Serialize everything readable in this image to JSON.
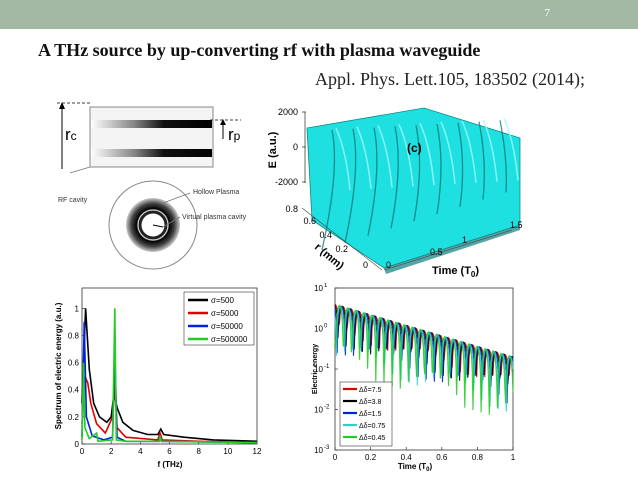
{
  "slide": {
    "page_number": "7",
    "title": "A THz source by up-converting rf with plasma waveguide",
    "reference": "Appl. Phys. Lett.105, 183502 (2014);"
  },
  "diagram": {
    "rc_label": "r",
    "rc_sub": "c",
    "rp_label": "r",
    "rp_sub": "p",
    "rf_cavity": "RF cavity",
    "hollow_plasma": "Hollow Plasma",
    "virtual_cavity": "Virtual plasma cavity"
  },
  "chart_data": [
    {
      "type": "surface",
      "panel_label": "(c)",
      "zlabel": "E (a.u.)",
      "z_ticks": [
        "2000",
        "0",
        "-2000"
      ],
      "r_label": "r (mm)",
      "r_ticks": [
        "0.8",
        "0.6",
        "0.4",
        "0.2",
        "0"
      ],
      "t_label": "Time (T",
      "t_label_sub": "0",
      "t_ticks": [
        "0",
        "0.5",
        "1",
        "1.5"
      ],
      "surface_color": "#1fe0e0"
    },
    {
      "type": "line",
      "xlabel": "f (THz)",
      "ylabel": "Spectrum of electric energy (a.u.)",
      "x_ticks": [
        "0",
        "2",
        "4",
        "6",
        "8",
        "10",
        "12"
      ],
      "y_ticks": [
        "0",
        "0.2",
        "0.4",
        "0.6",
        "0.8",
        "1"
      ],
      "xlim": [
        0,
        12
      ],
      "ylim": [
        0,
        1.15
      ],
      "series": [
        {
          "name": "σ=500",
          "color": "#000000",
          "points": [
            [
              0,
              0.3
            ],
            [
              0.25,
              1.0
            ],
            [
              0.5,
              0.55
            ],
            [
              0.8,
              0.3
            ],
            [
              1.2,
              0.2
            ],
            [
              1.7,
              0.16
            ],
            [
              2.0,
              0.2
            ],
            [
              2.2,
              0.38
            ],
            [
              2.4,
              0.27
            ],
            [
              2.8,
              0.16
            ],
            [
              3.5,
              0.1
            ],
            [
              4.5,
              0.07
            ],
            [
              5.2,
              0.07
            ],
            [
              5.4,
              0.11
            ],
            [
              5.6,
              0.07
            ],
            [
              7,
              0.05
            ],
            [
              9,
              0.03
            ],
            [
              12,
              0.02
            ]
          ]
        },
        {
          "name": "σ=5000",
          "color": "#e00000",
          "points": [
            [
              0,
              0.15
            ],
            [
              0.2,
              0.5
            ],
            [
              0.4,
              0.45
            ],
            [
              0.6,
              0.3
            ],
            [
              1.0,
              0.15
            ],
            [
              1.6,
              0.08
            ],
            [
              2.1,
              0.2
            ],
            [
              2.25,
              0.45
            ],
            [
              2.4,
              0.12
            ],
            [
              3,
              0.05
            ],
            [
              5.2,
              0.03
            ],
            [
              5.35,
              0.08
            ],
            [
              5.5,
              0.03
            ],
            [
              8,
              0.02
            ],
            [
              12,
              0.01
            ]
          ]
        },
        {
          "name": "σ=50000",
          "color": "#0022dd",
          "points": [
            [
              0,
              0.05
            ],
            [
              0.15,
              0.9
            ],
            [
              0.3,
              0.2
            ],
            [
              0.7,
              0.06
            ],
            [
              1.5,
              0.03
            ],
            [
              2.1,
              0.05
            ],
            [
              2.25,
              0.7
            ],
            [
              2.4,
              0.05
            ],
            [
              3,
              0.02
            ],
            [
              5.3,
              0.02
            ],
            [
              5.35,
              0.05
            ],
            [
              5.45,
              0.02
            ],
            [
              12,
              0.01
            ]
          ]
        },
        {
          "name": "σ=500000",
          "color": "#22cc22",
          "points": [
            [
              0,
              0.03
            ],
            [
              0.1,
              0.6
            ],
            [
              0.2,
              0.12
            ],
            [
              0.5,
              0.04
            ],
            [
              1,
              0.08
            ],
            [
              1.1,
              0.02
            ],
            [
              2.1,
              0.03
            ],
            [
              2.25,
              1.0
            ],
            [
              2.35,
              0.03
            ],
            [
              3,
              0.02
            ],
            [
              5.3,
              0.02
            ],
            [
              5.35,
              0.06
            ],
            [
              5.45,
              0.02
            ],
            [
              12,
              0.01
            ]
          ]
        }
      ]
    },
    {
      "type": "line",
      "log_y": true,
      "xlabel": "Time (T",
      "xlabel_sub": "0",
      "ylabel": "Electric energy",
      "x_ticks": [
        "0",
        "0.2",
        "0.4",
        "0.6",
        "0.8",
        "1"
      ],
      "y_ticks": [
        "10",
        "10",
        "10",
        "10",
        "10"
      ],
      "y_tick_exps": [
        "1",
        "0",
        "-1",
        "-2",
        "-3"
      ],
      "xlim": [
        0,
        1
      ],
      "ylim_exp": [
        -3,
        1
      ],
      "series": [
        {
          "name": "Δδ=7.5",
          "color": "#e00000"
        },
        {
          "name": "Δδ=3.8",
          "color": "#000000"
        },
        {
          "name": "Δδ=1.5",
          "color": "#0022dd"
        },
        {
          "name": "Δδ=0.75",
          "color": "#33cccc"
        },
        {
          "name": "Δδ=0.45",
          "color": "#22cc22"
        }
      ]
    }
  ]
}
